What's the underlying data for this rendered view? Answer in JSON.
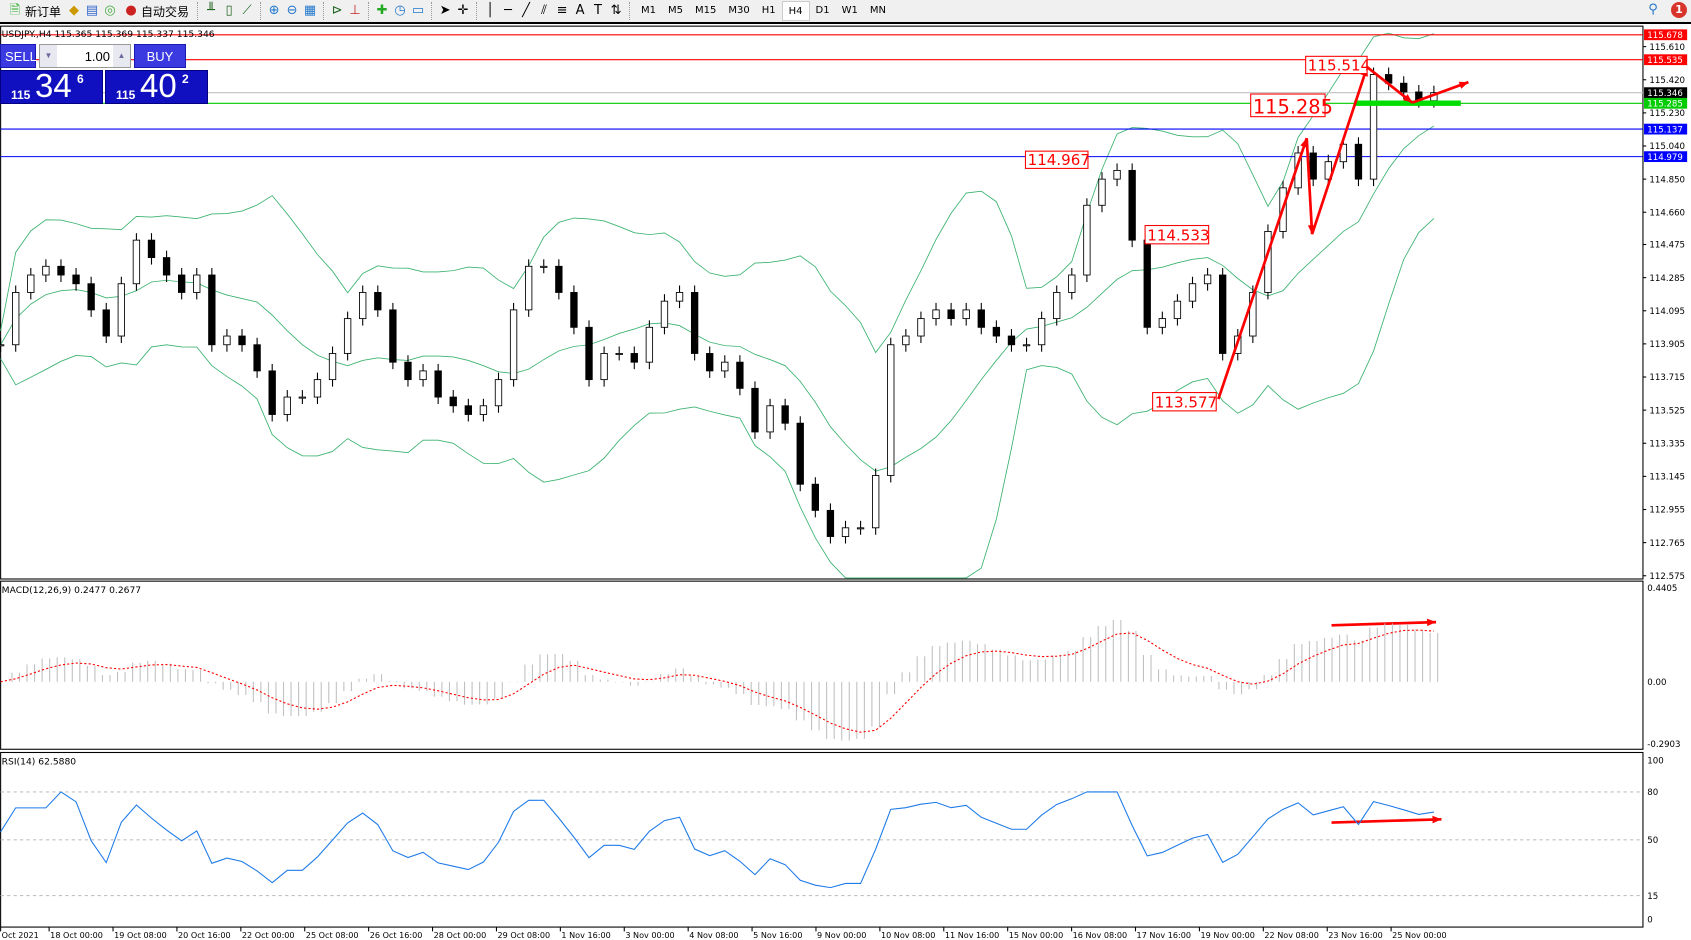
{
  "toolbar": {
    "new_order": "新订单",
    "auto_trading": "自动交易",
    "icons": [
      "new-order-icon",
      "market-watch-icon",
      "navigator-icon",
      "signals-icon",
      "auto-trading-icon",
      "bar-chart-icon",
      "candlestick-icon",
      "line-chart-icon",
      "zoom-in-icon",
      "zoom-out-icon",
      "tile-windows-icon",
      "auto-scroll-icon",
      "chart-shift-icon",
      "indicators-icon",
      "periods-icon",
      "templates-icon",
      "cursor-icon",
      "crosshair-icon",
      "vertical-line-icon",
      "horizontal-line-icon",
      "trendline-icon",
      "equidistant-channel-icon",
      "fibonacci-icon",
      "text-icon",
      "text-label-icon",
      "arrows-icon"
    ],
    "timeframes": [
      "M1",
      "M5",
      "M15",
      "M30",
      "H1",
      "H4",
      "D1",
      "W1",
      "MN"
    ],
    "active_timeframe": "H4",
    "notification_count": "1"
  },
  "symbol_line": "USDJPY.,H4  115.365 115.369 115.337 115.346",
  "trade_panel": {
    "sell_label": "SELL",
    "buy_label": "BUY",
    "lot": "1.00",
    "sell_price": {
      "prefix": "115",
      "big": "34",
      "sup": "6"
    },
    "buy_price": {
      "prefix": "115",
      "big": "40",
      "sup": "2"
    }
  },
  "colors": {
    "bull": "#ffffff",
    "bear": "#000000",
    "band": "#3cb371",
    "resistance": "#ff0000",
    "support": "#0000ff",
    "pivot": "#00dd00",
    "macd_signal": "#ff0000",
    "rsi": "#1e7be8"
  },
  "chart_data": [
    {
      "type": "candlestick",
      "symbol": "USDJPY.",
      "timeframe": "H4",
      "ylim": [
        112.575,
        115.678
      ],
      "y_ticks": [
        "115.610",
        "115.420",
        "115.230",
        "115.040",
        "114.850",
        "114.660",
        "114.475",
        "114.285",
        "114.095",
        "113.905",
        "113.715",
        "113.525",
        "113.335",
        "113.145",
        "112.955",
        "112.765",
        "112.575"
      ],
      "x_ticks": [
        "Oct 2021",
        "18 Oct 00:00",
        "19 Oct 08:00",
        "20 Oct 16:00",
        "22 Oct 00:00",
        "25 Oct 08:00",
        "26 Oct 16:00",
        "28 Oct 00:00",
        "29 Oct 08:00",
        "1 Nov 16:00",
        "3 Nov 00:00",
        "4 Nov 08:00",
        "5 Nov 16:00",
        "9 Nov 00:00",
        "10 Nov 08:00",
        "11 Nov 16:00",
        "15 Nov 00:00",
        "16 Nov 08:00",
        "17 Nov 16:00",
        "19 Nov 00:00",
        "22 Nov 08:00",
        "23 Nov 16:00",
        "25 Nov 00:00"
      ],
      "close": [
        113.9,
        114.2,
        114.3,
        114.35,
        114.3,
        114.25,
        114.1,
        113.95,
        114.25,
        114.5,
        114.4,
        114.3,
        114.2,
        114.3,
        113.9,
        113.95,
        113.9,
        113.75,
        113.5,
        113.6,
        113.6,
        113.7,
        113.85,
        114.05,
        114.2,
        114.1,
        113.8,
        113.7,
        113.75,
        113.6,
        113.55,
        113.5,
        113.55,
        113.7,
        114.1,
        114.35,
        114.35,
        114.2,
        114.0,
        113.7,
        113.85,
        113.85,
        113.8,
        114.0,
        114.15,
        114.2,
        113.85,
        113.75,
        113.8,
        113.65,
        113.4,
        113.55,
        113.45,
        113.1,
        112.95,
        112.8,
        112.85,
        112.85,
        113.15,
        113.9,
        113.95,
        114.05,
        114.1,
        114.05,
        114.1,
        114.0,
        113.95,
        113.9,
        113.9,
        114.05,
        114.2,
        114.3,
        114.7,
        114.85,
        114.9,
        114.5,
        114.0,
        114.05,
        114.15,
        114.25,
        114.3,
        113.85,
        113.95,
        114.2,
        114.55,
        114.8,
        115.0,
        114.85,
        114.95,
        115.05,
        114.85,
        115.45,
        115.4,
        115.35,
        115.3,
        115.346
      ],
      "levels": [
        {
          "price": 115.678,
          "label": "115.678",
          "color": "#ff0000"
        },
        {
          "price": 115.535,
          "label": "115.535",
          "color": "#ff0000"
        },
        {
          "price": 115.346,
          "label": "115.346",
          "color": "#000000"
        },
        {
          "price": 115.285,
          "label": "115.285",
          "color": "#00cc00"
        },
        {
          "price": 115.137,
          "label": "115.137",
          "color": "#0000ff"
        },
        {
          "price": 114.979,
          "label": "114.979",
          "color": "#0000ff"
        }
      ],
      "annotations": [
        "115.514",
        "115.285",
        "114.967",
        "114.533",
        "113.577"
      ]
    },
    {
      "type": "histogram+line",
      "name": "MACD(12,26,9) 0.2477 0.2677",
      "ylim": [
        -0.2903,
        0.4405
      ],
      "y_ticks": [
        "0.4405",
        "0.00",
        "-0.2903"
      ]
    },
    {
      "type": "line",
      "name": "RSI(14) 62.5880",
      "ylim": [
        0,
        100
      ],
      "y_ticks": [
        "100",
        "80",
        "50",
        "15",
        "0"
      ],
      "levels": [
        80,
        50,
        15
      ]
    }
  ]
}
